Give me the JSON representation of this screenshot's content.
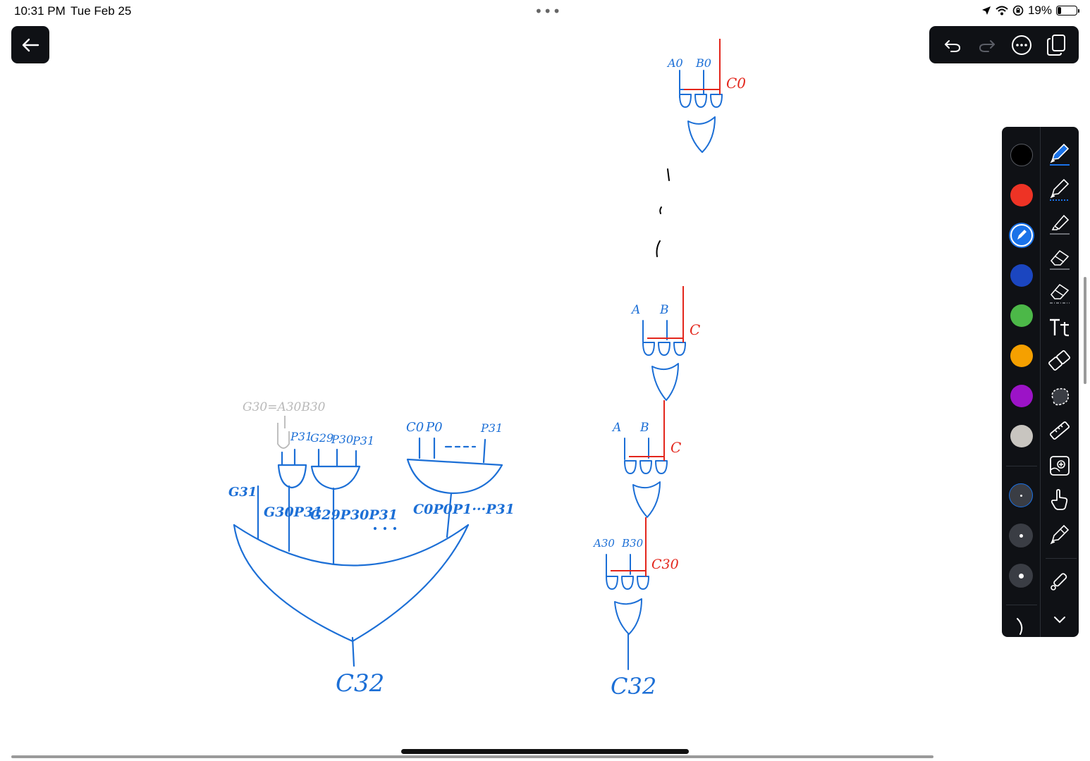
{
  "status_bar": {
    "time": "10:31 PM",
    "date": "Tue Feb 25",
    "battery": "19%",
    "battery_level": 0.19,
    "multitask_dots": "•••"
  },
  "toolbar": {
    "back": "back-arrow-icon",
    "undo": "undo-icon",
    "redo": "redo-icon",
    "more": "more-icon",
    "pages": "pages-icon"
  },
  "palette": {
    "colors": [
      "#000000",
      "#ee3325",
      "#1a72e8",
      "#1b46c0",
      "#4cb848",
      "#f5a000",
      "#9c13c7",
      "#c8c5c0"
    ],
    "selected_color": "#1a72e8"
  },
  "tools": [
    "pen",
    "pencil",
    "highlighter",
    "eraser",
    "eraser-partial",
    "text",
    "shape",
    "lasso",
    "ruler",
    "image",
    "hand",
    "pencil-light",
    "laser-pointer"
  ],
  "drawing": {
    "accent_blue": "#1c6fd6",
    "accent_red": "#e3261c",
    "accent_gray": "#b9b9b9",
    "labels": {
      "g30_eq": "G30=A30B30",
      "p31_a": "P31",
      "g29": "G29",
      "p30": "P30",
      "p31_b": "P31",
      "c0": "C0",
      "p0": "P0",
      "p31_c": "P31",
      "g31": "G31",
      "g30p31": "G30P31",
      "g29p30p31": "G29P30P31",
      "c0p0p1p31": "C0P0P1···P31",
      "c32_left": "C32",
      "a0": "A0",
      "b0": "B0",
      "c0_red": "C0",
      "a_1": "A",
      "b_1": "B",
      "c_1": "C",
      "a_2": "A",
      "b_2": "B",
      "c_2": "C",
      "a30": "A30",
      "b30": "B30",
      "c30": "C30",
      "c32_right": "C32"
    }
  }
}
